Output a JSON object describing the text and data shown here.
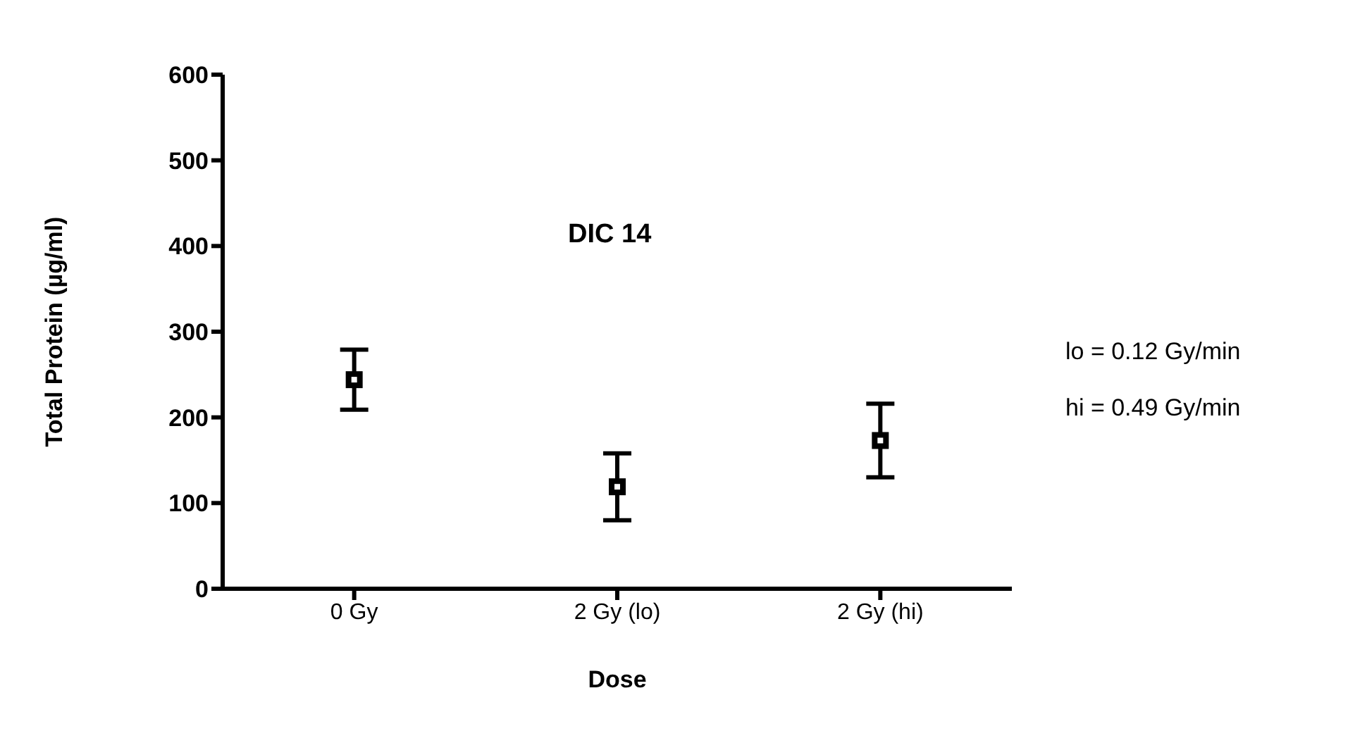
{
  "chart_data": {
    "type": "scatter",
    "xlabel": "Dose",
    "ylabel": "Total Protein (µg/ml)",
    "categories": [
      "0 Gy",
      "2 Gy (lo)",
      "2 Gy (hi)"
    ],
    "series": [
      {
        "color": "#000000",
        "values": [
          244,
          119,
          173
        ],
        "errors": [
          [
            209,
            279
          ],
          [
            80,
            158
          ],
          [
            130,
            216
          ]
        ]
      }
    ],
    "ylim": [
      0,
      600
    ],
    "yticks": [
      0,
      100,
      200,
      300,
      400,
      500,
      600
    ],
    "grid": false,
    "legend": false,
    "marker": "square",
    "annotations": [
      "DIC 14",
      "lo = 0.12 Gy/min",
      "hi = 0.49 Gy/min"
    ]
  }
}
